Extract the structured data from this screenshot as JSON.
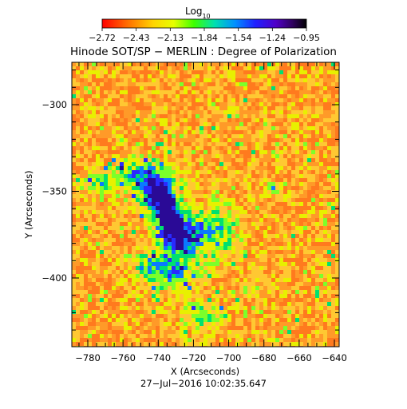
{
  "colorbar": {
    "label_base": "Log",
    "label_sub": "10",
    "ticks": [
      "−2.72",
      "−2.43",
      "−2.13",
      "−1.84",
      "−1.54",
      "−1.24",
      "−0.95"
    ],
    "colors": [
      "#ff0000",
      "#ff6a00",
      "#ffd400",
      "#e6ff00",
      "#3cff00",
      "#00e0b0",
      "#0090ff",
      "#2020ff",
      "#5000c8",
      "#300060",
      "#000000"
    ]
  },
  "title": "Hinode SOT/SP − MERLIN : Degree of Polarization",
  "axes": {
    "xlabel": "X (Arcseconds)",
    "ylabel": "Y (Arcseconds)",
    "xticks": [
      "−780",
      "−760",
      "−740",
      "−720",
      "−700",
      "−680",
      "−660",
      "−640"
    ],
    "yticks": [
      "−300",
      "−350",
      "−400"
    ]
  },
  "timestamp": "27−Jul−2016 10:02:35.647",
  "map": {
    "background_color": "#ff7a1e",
    "palette": [
      "#ff5a14",
      "#ff7a1e",
      "#ff9a28",
      "#ffc832",
      "#e8f000",
      "#7cff2a",
      "#00e070",
      "#0a7aff",
      "#2a2aff",
      "#2a0a96"
    ]
  }
}
